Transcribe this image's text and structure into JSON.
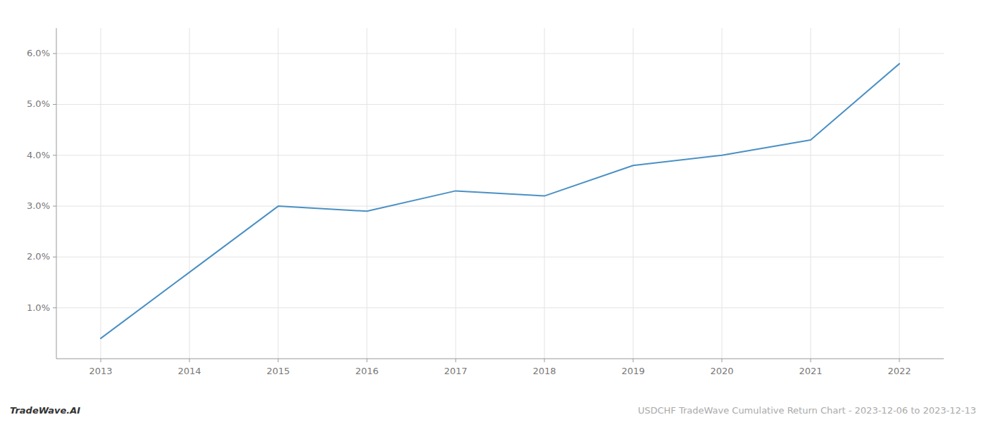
{
  "chart_data": {
    "type": "line",
    "x": [
      2013,
      2014,
      2015,
      2016,
      2017,
      2018,
      2019,
      2020,
      2021,
      2022
    ],
    "values": [
      0.004,
      0.017,
      0.03,
      0.029,
      0.033,
      0.032,
      0.038,
      0.04,
      0.043,
      0.058
    ],
    "color": "#4a90c4",
    "xlim": [
      2012.5,
      2022.5
    ],
    "xticks": [
      2013,
      2014,
      2015,
      2016,
      2017,
      2018,
      2019,
      2020,
      2021,
      2022
    ],
    "ylim": [
      0.0,
      0.065
    ],
    "yticks": [
      {
        "value": 0.01,
        "label": "1.0%"
      },
      {
        "value": 0.02,
        "label": "2.0%"
      },
      {
        "value": 0.03,
        "label": "3.0%"
      },
      {
        "value": 0.04,
        "label": "4.0%"
      },
      {
        "value": 0.05,
        "label": "5.0%"
      },
      {
        "value": 0.06,
        "label": "6.0%"
      }
    ],
    "grid": true,
    "annotations": [
      {
        "text": "TradeWave.AI",
        "color": "#333333"
      },
      {
        "text": "USDCHF TradeWave Cumulative Return Chart - 2023-12-06 to 2023-12-13",
        "color": "#aaaaaa"
      }
    ]
  }
}
